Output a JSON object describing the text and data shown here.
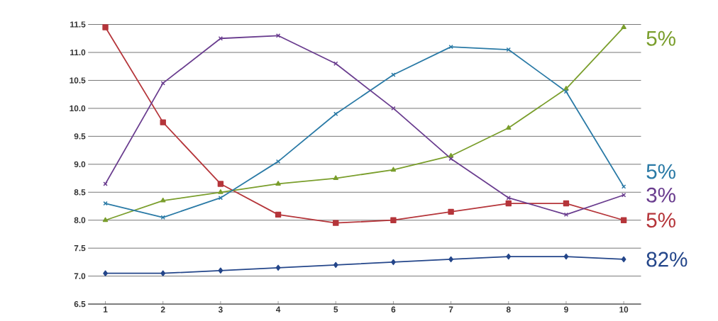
{
  "chart_data": {
    "type": "line",
    "categories": [
      "1",
      "2",
      "3",
      "4",
      "5",
      "6",
      "7",
      "8",
      "9",
      "10"
    ],
    "series": [
      {
        "name": "5%",
        "color": "#b5353a",
        "marker": "square",
        "values": [
          11.45,
          9.75,
          8.65,
          8.1,
          7.95,
          8.0,
          8.15,
          8.3,
          8.3,
          8.0
        ]
      },
      {
        "name": "5%",
        "color": "#7a9e2c",
        "marker": "triangle",
        "values": [
          8.0,
          8.35,
          8.5,
          8.65,
          8.75,
          8.9,
          9.15,
          9.65,
          10.35,
          11.45
        ]
      },
      {
        "name": "5%",
        "color": "#2a7aa6",
        "marker": "cross",
        "values": [
          8.3,
          8.05,
          8.4,
          9.05,
          9.9,
          10.6,
          11.1,
          11.05,
          10.3,
          8.6
        ]
      },
      {
        "name": "3%",
        "color": "#6a3d8f",
        "marker": "cross",
        "values": [
          8.65,
          10.45,
          11.25,
          11.3,
          10.8,
          10.0,
          9.1,
          8.4,
          8.1,
          8.45
        ]
      },
      {
        "name": "82%",
        "color": "#24468a",
        "marker": "diamond",
        "values": [
          7.05,
          7.05,
          7.1,
          7.15,
          7.2,
          7.25,
          7.3,
          7.35,
          7.35,
          7.3
        ]
      }
    ],
    "ylim": [
      6.5,
      11.5
    ],
    "yticks": [
      6.5,
      {
        "value": 7,
        "label": "7.0"
      },
      7.5,
      {
        "value": 8,
        "label": "8.0"
      },
      8.5,
      {
        "value": 9,
        "label": "9.0"
      },
      9.5,
      {
        "value": 10,
        "label": "10.0"
      },
      10.5,
      {
        "value": 11,
        "label": "11.0"
      },
      11.5
    ],
    "grid": "y"
  }
}
